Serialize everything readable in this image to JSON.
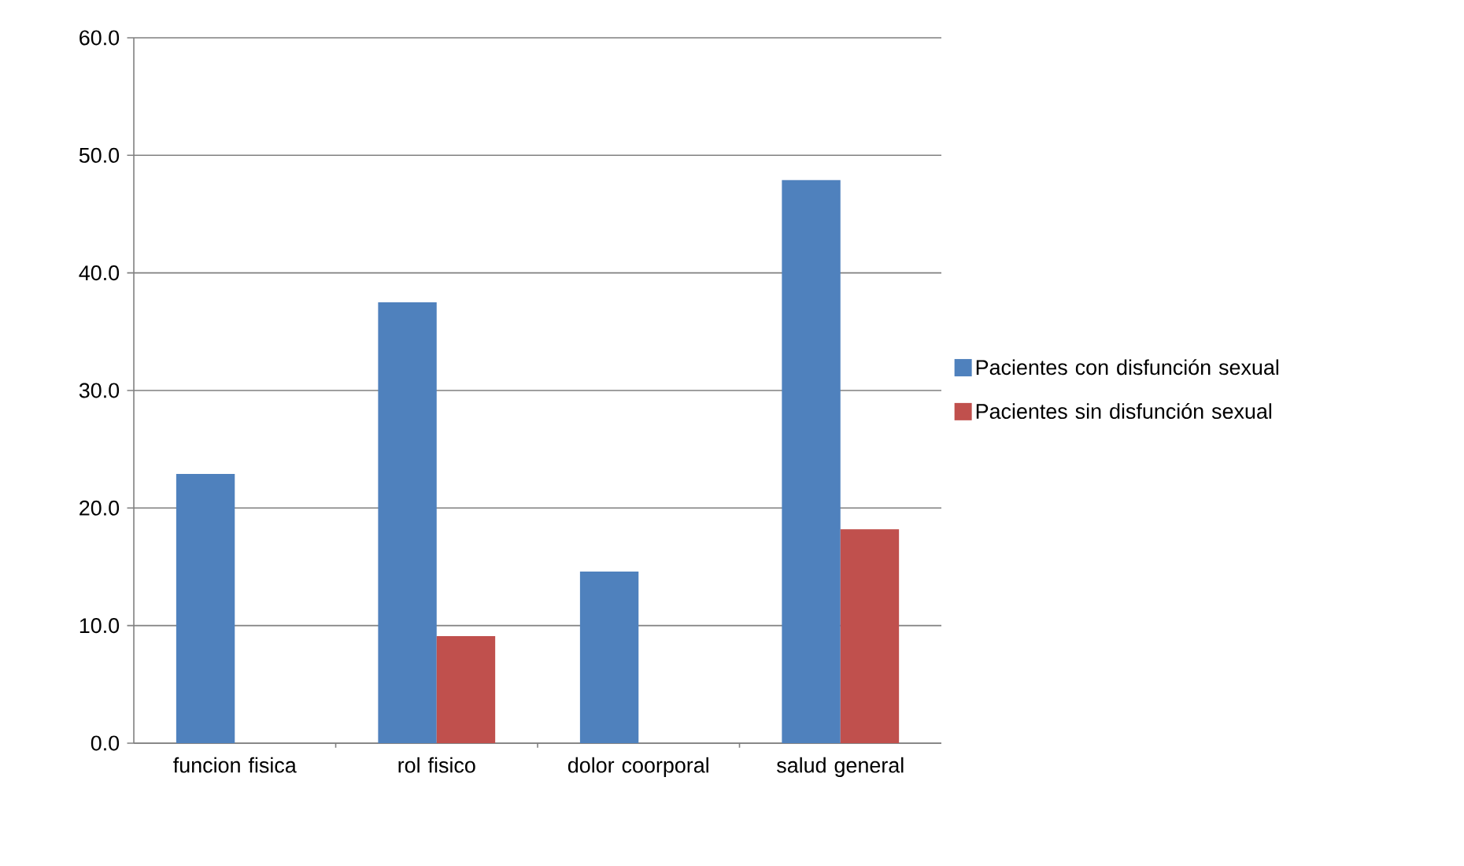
{
  "chart_data": {
    "type": "bar",
    "categories": [
      "funcion fisica",
      "rol fisico",
      "dolor coorporal",
      "salud general"
    ],
    "series": [
      {
        "name": "Pacientes con disfunción sexual",
        "color": "#4f81bd",
        "values": [
          22.9,
          37.5,
          14.6,
          47.9
        ]
      },
      {
        "name": "Pacientes sin disfunción sexual",
        "color": "#c0504d",
        "values": [
          0,
          9.1,
          0,
          18.2
        ]
      }
    ],
    "ylim": [
      0,
      60
    ],
    "yticks": [
      {
        "value": 0,
        "label": "0.0"
      },
      {
        "value": 10,
        "label": "10.0"
      },
      {
        "value": 20,
        "label": "20.0"
      },
      {
        "value": 30,
        "label": "30.0"
      },
      {
        "value": 40,
        "label": "40.0"
      },
      {
        "value": 50,
        "label": "50.0"
      },
      {
        "value": 60,
        "label": "60.0"
      }
    ],
    "grid": "y",
    "legend": "right"
  }
}
